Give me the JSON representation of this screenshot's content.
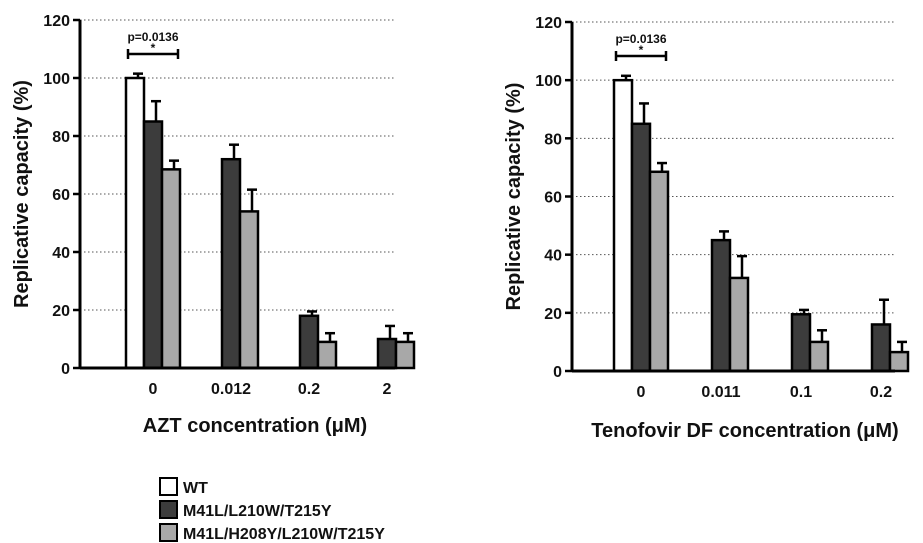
{
  "chart_data": [
    {
      "type": "bar",
      "xlabel": "AZT concentration (μM)",
      "ylabel": "Replicative capacity (%)",
      "ylim": [
        0,
        120
      ],
      "yticks": [
        0,
        20,
        40,
        60,
        80,
        100,
        120
      ],
      "grid": "horizontal dotted",
      "categories": [
        "0",
        "0.012",
        "0.2",
        "2"
      ],
      "series": [
        {
          "name": "WT",
          "values": [
            100,
            null,
            null,
            null
          ],
          "errors": [
            1.5,
            null,
            null,
            null
          ]
        },
        {
          "name": "M41L/L210W/T215Y",
          "values": [
            85,
            72,
            18,
            10
          ],
          "errors": [
            7,
            5,
            1.5,
            4.5
          ]
        },
        {
          "name": "M41L/H208Y/L210W/T215Y",
          "values": [
            68.5,
            54,
            9,
            9
          ],
          "errors": [
            3,
            7.5,
            3,
            3
          ]
        }
      ],
      "annotation": {
        "text": "p=0.0136",
        "star": "*"
      }
    },
    {
      "type": "bar",
      "xlabel": "Tenofovir DF concentration (μM)",
      "ylabel": "Replicative capacity (%)",
      "ylim": [
        0,
        120
      ],
      "yticks": [
        0,
        20,
        40,
        60,
        80,
        100,
        120
      ],
      "grid": "horizontal dotted",
      "categories": [
        "0",
        "0.011",
        "0.1",
        "0.2"
      ],
      "series": [
        {
          "name": "WT",
          "values": [
            100,
            null,
            null,
            null
          ],
          "errors": [
            1.5,
            null,
            null,
            null
          ]
        },
        {
          "name": "M41L/L210W/T215Y",
          "values": [
            85,
            45,
            19.5,
            16
          ],
          "errors": [
            7,
            3,
            1.5,
            8.5
          ]
        },
        {
          "name": "M41L/H208Y/L210W/T215Y",
          "values": [
            68.5,
            32,
            10,
            6.5
          ],
          "errors": [
            3,
            7.5,
            4,
            3.5
          ]
        }
      ],
      "annotation": {
        "text": "p=0.0136",
        "star": "*"
      }
    }
  ],
  "legend": {
    "items": [
      {
        "label": "WT",
        "color": "#ffffff"
      },
      {
        "label": "M41L/L210W/T215Y",
        "color": "#3c3c3c"
      },
      {
        "label": "M41L/H208Y/L210W/T215Y",
        "color": "#a8a8a8"
      }
    ]
  },
  "colors": {
    "wt": "#ffffff",
    "triple": "#3c3c3c",
    "quad": "#a8a8a8",
    "stroke": "#000000"
  }
}
